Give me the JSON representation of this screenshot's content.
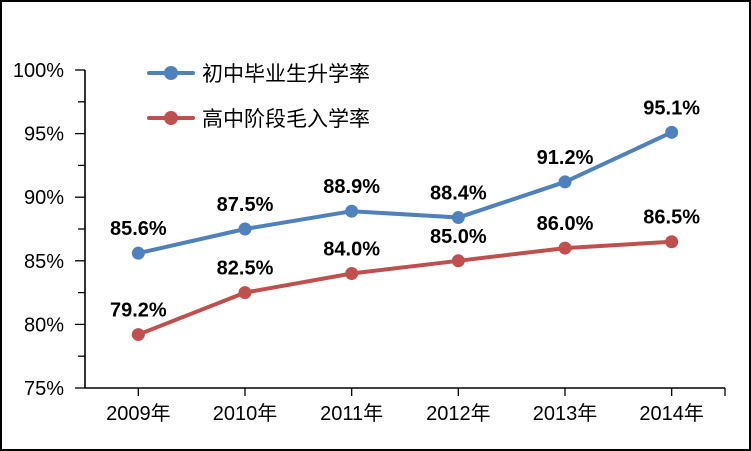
{
  "chart_data": {
    "type": "line",
    "title": "",
    "xlabel": "",
    "ylabel": "",
    "categories": [
      "2009年",
      "2010年",
      "2011年",
      "2012年",
      "2013年",
      "2014年"
    ],
    "series": [
      {
        "name": "初中毕业生升学率",
        "values": [
          85.6,
          87.5,
          88.9,
          88.4,
          91.2,
          95.1
        ],
        "labels": [
          "85.6%",
          "87.5%",
          "88.9%",
          "88.4%",
          "91.2%",
          "95.1%"
        ],
        "color": "#4F81BD"
      },
      {
        "name": "高中阶段毛入学率",
        "values": [
          79.2,
          82.5,
          84.0,
          85.0,
          86.0,
          86.5
        ],
        "labels": [
          "79.2%",
          "82.5%",
          "84.0%",
          "85.0%",
          "86.0%",
          "86.5%"
        ],
        "color": "#C0504D"
      }
    ],
    "ylim": [
      75,
      100
    ],
    "y_major_step": 5,
    "y_minor_step": 2.5,
    "y_tick_labels": [
      "75%",
      "80%",
      "85%",
      "90%",
      "95%",
      "100%"
    ],
    "grid": false,
    "legend_position": "top-left-inside",
    "axis_color": "#000000",
    "text_color": "#000000",
    "background_color": "#FFFFFF",
    "border_color": "#000000",
    "marker": "circle",
    "data_label_position": "above"
  }
}
